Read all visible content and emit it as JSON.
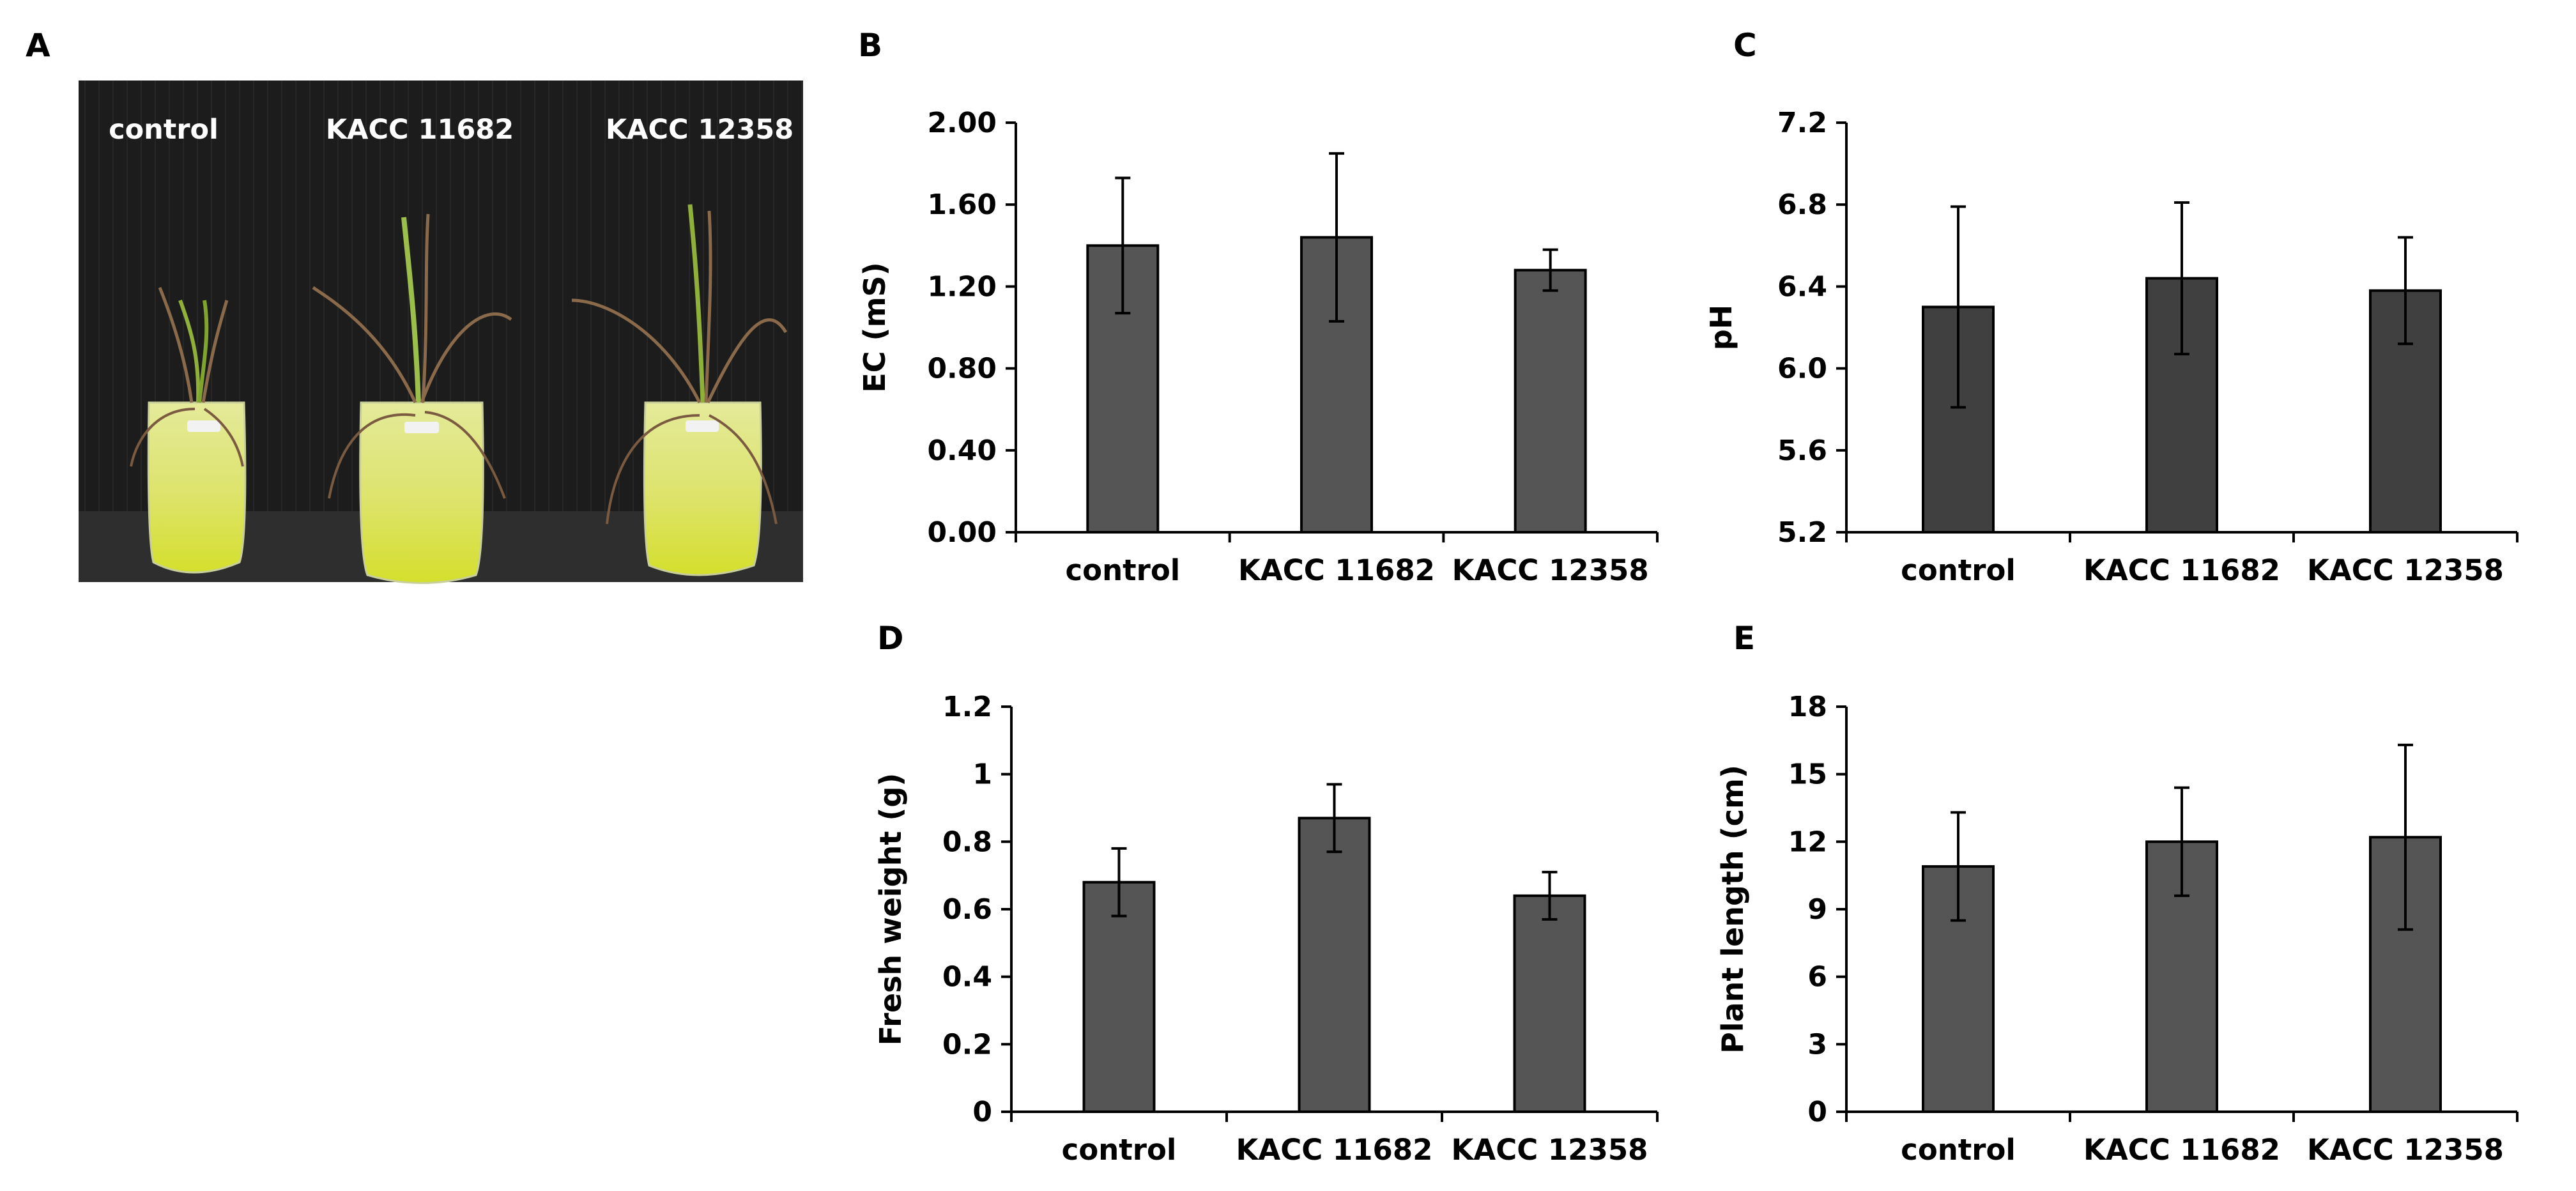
{
  "panel_labels": {
    "A": "A"
  },
  "photo": {
    "labels": [
      "control",
      "KACC 11682",
      "KACC 12358"
    ],
    "colors": {
      "backdrop": "#1b1b1b",
      "liquid": "#d6e23a",
      "leaf": "#8fb13a",
      "dry_leaf": "#8a6a4a"
    }
  },
  "chart_data": [
    {
      "panel": "B",
      "type": "bar",
      "categories": [
        "control",
        "KACC 11682",
        "KACC 12358"
      ],
      "values": [
        1.4,
        1.44,
        1.28
      ],
      "errors": [
        0.33,
        0.41,
        0.1
      ],
      "ylabel": "EC (mS)",
      "ylim": [
        0,
        2.0
      ],
      "yticks": [
        "0.00",
        "0.40",
        "0.80",
        "1.20",
        "1.60",
        "2.00"
      ],
      "bar_color": "#555555"
    },
    {
      "panel": "C",
      "type": "bar",
      "categories": [
        "control",
        "KACC 11682",
        "KACC 12358"
      ],
      "values": [
        6.3,
        6.44,
        6.38
      ],
      "errors": [
        0.49,
        0.37,
        0.26
      ],
      "ylabel": "pH",
      "ylim": [
        5.2,
        7.2
      ],
      "yticks": [
        "5.2",
        "5.6",
        "6.0",
        "6.4",
        "6.8",
        "7.2"
      ],
      "bar_color": "#404040"
    },
    {
      "panel": "D",
      "type": "bar",
      "categories": [
        "control",
        "KACC 11682",
        "KACC 12358"
      ],
      "values": [
        0.68,
        0.87,
        0.64
      ],
      "errors": [
        0.1,
        0.1,
        0.07
      ],
      "ylabel": "Fresh weight (g)",
      "ylim": [
        0,
        1.2
      ],
      "yticks": [
        "0",
        "0.2",
        "0.4",
        "0.6",
        "0.8",
        "1",
        "1.2"
      ],
      "bar_color": "#555555"
    },
    {
      "panel": "E",
      "type": "bar",
      "categories": [
        "control",
        "KACC 11682",
        "KACC 12358"
      ],
      "values": [
        10.9,
        12.0,
        12.2
      ],
      "errors": [
        2.4,
        2.4,
        4.1
      ],
      "ylabel": "Plant length (cm)",
      "ylim": [
        0,
        18
      ],
      "yticks": [
        "0",
        "3",
        "6",
        "9",
        "12",
        "15",
        "18"
      ],
      "bar_color": "#555555"
    }
  ]
}
